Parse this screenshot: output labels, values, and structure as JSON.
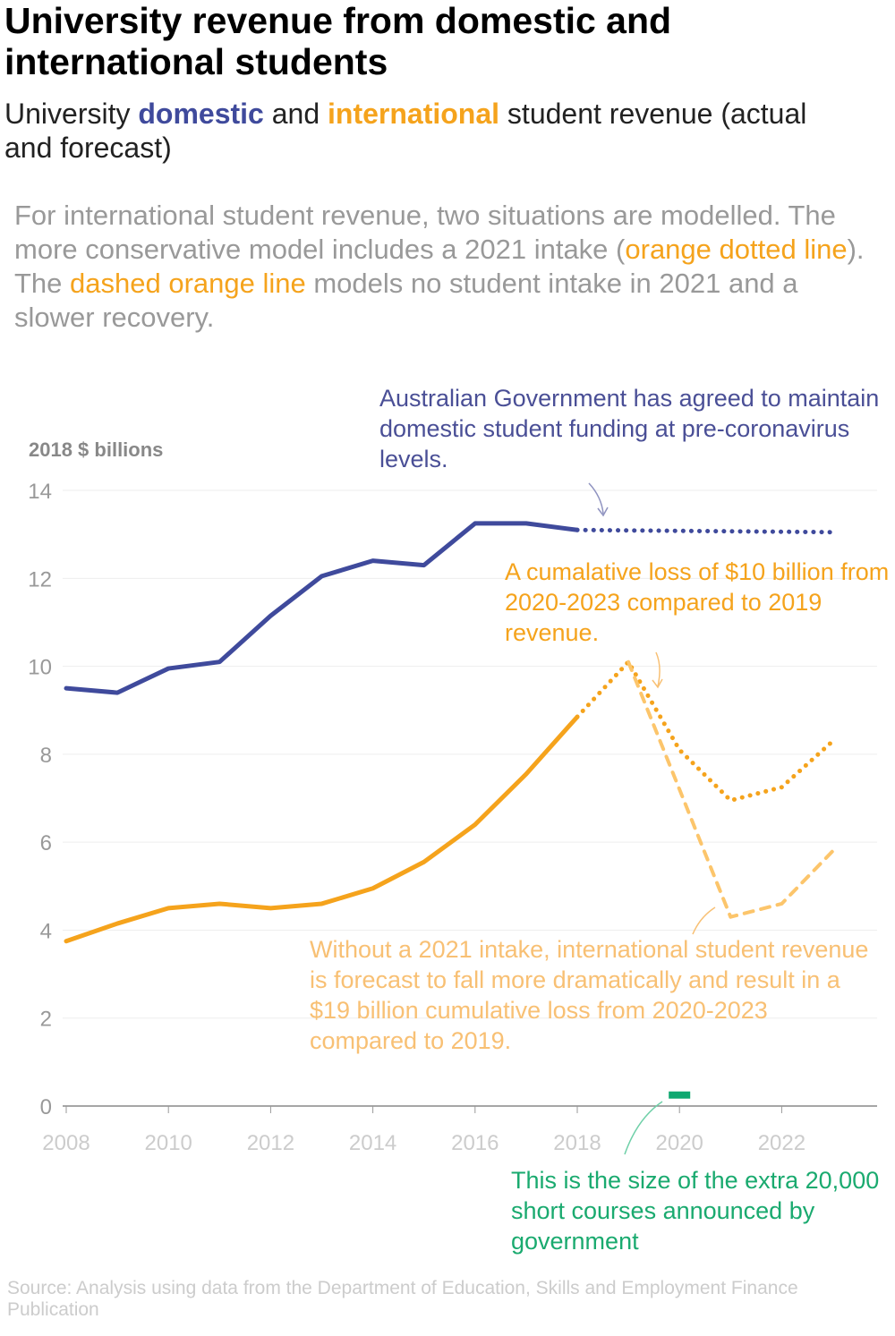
{
  "title": "University revenue from domestic and international students",
  "subtitle": {
    "pre": "University ",
    "domestic": "domestic",
    "mid": " and ",
    "international": "international",
    "post": " student revenue (actual and forecast)"
  },
  "description": {
    "p1": "For international student revenue, two situations are modelled. The more conservative model includes a 2021 intake (",
    "h1": "orange dotted line",
    "p2": "). The ",
    "h2": "dashed orange line",
    "p3": " models no student intake in 2021 and a slower recovery."
  },
  "annotations": {
    "domestic": "Australian Government has agreed to maintain domestic student funding at pre-coronavirus levels.",
    "loss10": "A cumalative loss of $10 billion from 2020-2023 compared to 2019 revenue.",
    "loss19": "Without a 2021 intake, international student revenue is forecast to fall more dramatically and result in a $19 billion cumulative loss from 2020-2023 compared to 2019.",
    "short_courses": "This is the size of the extra 20,000 short courses announced by government"
  },
  "source": "Source: Analysis using data from the Department of Education, Skills and Employment Finance Publication",
  "colors": {
    "domestic": "#3f4a9c",
    "international": "#f5a31c",
    "international_no_intake": "#fcc56b",
    "short_courses": "#0fa870"
  },
  "chart_data": {
    "type": "line",
    "ylabel": "2018 $ billions",
    "xlim": [
      2008,
      2023
    ],
    "ylim": [
      0,
      14
    ],
    "xticks": [
      2008,
      2010,
      2012,
      2014,
      2016,
      2018,
      2020,
      2022
    ],
    "yticks": [
      0,
      2,
      4,
      6,
      8,
      10,
      12,
      14
    ],
    "grid": true,
    "series": [
      {
        "key": "domestic_actual",
        "style": "solid",
        "color": "#3f4a9c",
        "x": [
          2008,
          2009,
          2010,
          2011,
          2012,
          2013,
          2014,
          2015,
          2016,
          2017,
          2018
        ],
        "y": [
          9.5,
          9.4,
          9.95,
          10.1,
          11.15,
          12.05,
          12.4,
          12.3,
          13.25,
          13.25,
          13.1
        ]
      },
      {
        "key": "domestic_forecast",
        "style": "dotted",
        "color": "#3f4a9c",
        "x": [
          2018,
          2023
        ],
        "y": [
          13.1,
          13.05
        ]
      },
      {
        "key": "international_actual",
        "style": "solid",
        "color": "#f5a31c",
        "x": [
          2008,
          2009,
          2010,
          2011,
          2012,
          2013,
          2014,
          2015,
          2016,
          2017,
          2018
        ],
        "y": [
          3.75,
          4.15,
          4.5,
          4.6,
          4.5,
          4.6,
          4.95,
          5.55,
          6.4,
          7.55,
          8.85
        ]
      },
      {
        "key": "international_with_2021_intake",
        "style": "dotted",
        "color": "#f5a31c",
        "x": [
          2018,
          2019,
          2020,
          2021,
          2022,
          2023
        ],
        "y": [
          8.85,
          10.1,
          8.1,
          6.95,
          7.25,
          8.3
        ]
      },
      {
        "key": "international_no_2021_intake",
        "style": "dashed",
        "color": "#fcc56b",
        "x": [
          2019,
          2021,
          2022,
          2023
        ],
        "y": [
          10.1,
          4.3,
          4.6,
          5.8
        ]
      }
    ],
    "marker": {
      "key": "short_courses",
      "x": 2020,
      "y": 0.25,
      "color": "#0fa870"
    }
  }
}
